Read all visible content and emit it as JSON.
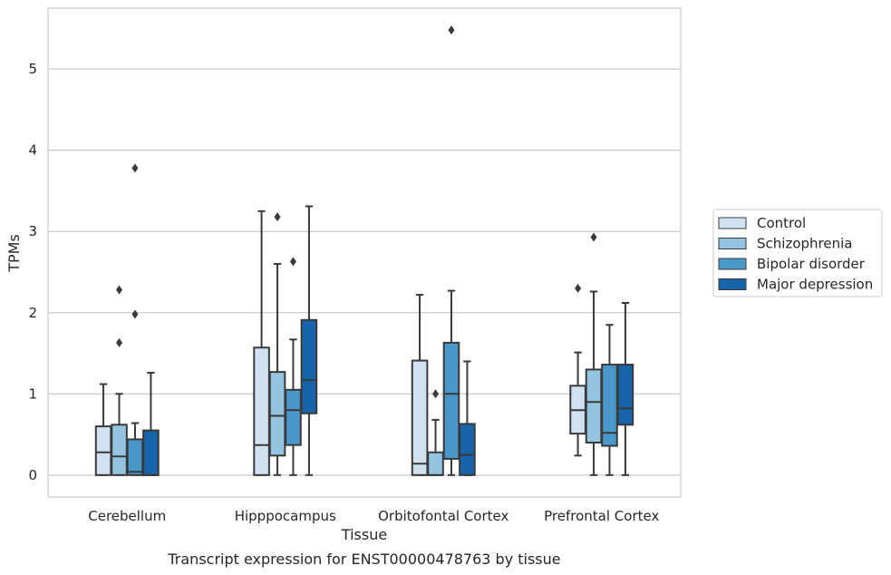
{
  "chart_data": {
    "type": "boxplot",
    "caption": "Transcript expression for ENST00000478763 by tissue",
    "xlabel": "Tissue",
    "ylabel": "TPMs",
    "ylim": [
      -0.27,
      5.75
    ],
    "yticks": [
      "0",
      "1",
      "2",
      "3",
      "4",
      "5"
    ],
    "grid": "horizontal",
    "legend_position": "right",
    "categories": [
      "Cerebellum",
      "Hipppocampus",
      "Orbitofontal Cortex",
      "Prefrontal Cortex"
    ],
    "series": [
      {
        "name": "Control",
        "color": "#d0e1f2",
        "boxes": [
          {
            "whisker_low": 0,
            "q1": 0,
            "median": 0.28,
            "q3": 0.6,
            "whisker_high": 1.12,
            "outliers": []
          },
          {
            "whisker_low": 0,
            "q1": 0,
            "median": 0.37,
            "q3": 1.57,
            "whisker_high": 3.25,
            "outliers": []
          },
          {
            "whisker_low": 0,
            "q1": 0,
            "median": 0.14,
            "q3": 1.41,
            "whisker_high": 2.22,
            "outliers": []
          },
          {
            "whisker_low": 0.24,
            "q1": 0.51,
            "median": 0.8,
            "q3": 1.1,
            "whisker_high": 1.51,
            "outliers": [
              2.3
            ]
          }
        ]
      },
      {
        "name": "Schizophrenia",
        "color": "#94c4df",
        "boxes": [
          {
            "whisker_low": 0,
            "q1": 0,
            "median": 0.23,
            "q3": 0.62,
            "whisker_high": 1.0,
            "outliers": [
              1.63,
              2.28
            ]
          },
          {
            "whisker_low": 0,
            "q1": 0.24,
            "median": 0.73,
            "q3": 1.27,
            "whisker_high": 2.6,
            "outliers": [
              3.18
            ]
          },
          {
            "whisker_low": 0,
            "q1": 0,
            "median": 0,
            "q3": 0.28,
            "whisker_high": 0.68,
            "outliers": [
              1.0
            ]
          },
          {
            "whisker_low": 0,
            "q1": 0.4,
            "median": 0.9,
            "q3": 1.3,
            "whisker_high": 2.26,
            "outliers": [
              2.93
            ]
          }
        ]
      },
      {
        "name": "Bipolar disorder",
        "color": "#4a98c9",
        "boxes": [
          {
            "whisker_low": 0,
            "q1": 0,
            "median": 0.04,
            "q3": 0.44,
            "whisker_high": 0.64,
            "outliers": [
              1.98,
              3.78
            ]
          },
          {
            "whisker_low": 0,
            "q1": 0.37,
            "median": 0.8,
            "q3": 1.05,
            "whisker_high": 1.67,
            "outliers": [
              2.63
            ]
          },
          {
            "whisker_low": 0,
            "q1": 0.2,
            "median": 1.0,
            "q3": 1.63,
            "whisker_high": 2.27,
            "outliers": [
              5.48
            ]
          },
          {
            "whisker_low": 0,
            "q1": 0.36,
            "median": 0.52,
            "q3": 1.36,
            "whisker_high": 1.85,
            "outliers": []
          }
        ]
      },
      {
        "name": "Major depression",
        "color": "#1764ab",
        "boxes": [
          {
            "whisker_low": 0,
            "q1": 0,
            "median": 0,
            "q3": 0.55,
            "whisker_high": 1.26,
            "outliers": []
          },
          {
            "whisker_low": 0,
            "q1": 0.76,
            "median": 1.17,
            "q3": 1.91,
            "whisker_high": 3.31,
            "outliers": []
          },
          {
            "whisker_low": 0,
            "q1": 0,
            "median": 0.25,
            "q3": 0.63,
            "whisker_high": 1.4,
            "outliers": []
          },
          {
            "whisker_low": 0,
            "q1": 0.62,
            "median": 0.82,
            "q3": 1.36,
            "whisker_high": 2.12,
            "outliers": []
          }
        ]
      }
    ]
  }
}
